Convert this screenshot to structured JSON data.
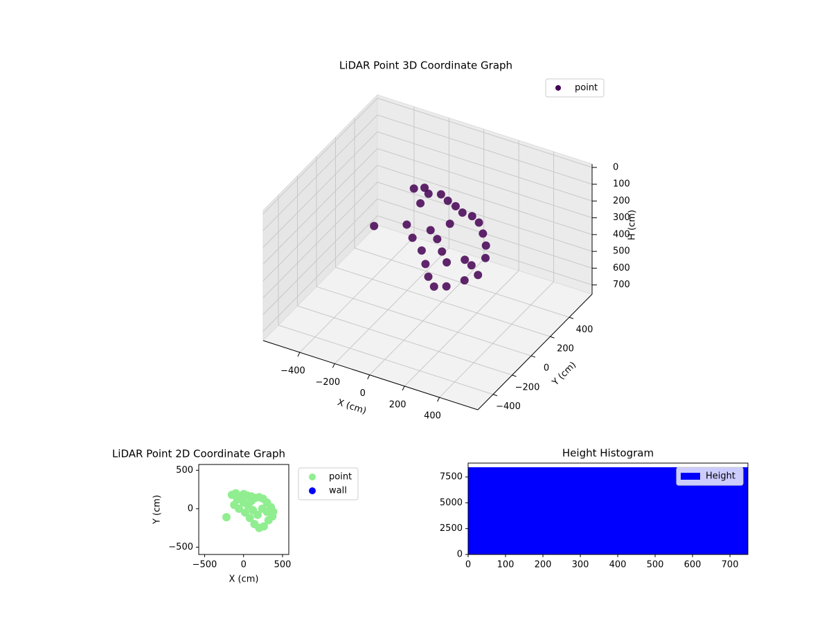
{
  "chart_data": [
    {
      "type": "scatter3d",
      "title": "LiDAR Point 3D Coordinate Graph",
      "xlabel": "X (cm)",
      "ylabel": "Y (cm)",
      "zlabel": "H (cm)",
      "xlim": [
        -610,
        620
      ],
      "ylim": [
        -560,
        640
      ],
      "zlim": [
        755,
        -20
      ],
      "xticks": [
        {
          "value": -400,
          "label": "−400"
        },
        {
          "value": -200,
          "label": "−200"
        },
        0,
        200,
        400
      ],
      "yticks": [
        {
          "value": -400,
          "label": "−400"
        },
        {
          "value": -200,
          "label": "−200"
        },
        0,
        200,
        400
      ],
      "zticks": [
        0,
        100,
        200,
        300,
        400,
        500,
        600,
        700
      ],
      "grid": true,
      "legend": "upper right",
      "series": [
        {
          "name": "point",
          "color": "#440154",
          "x": [
            -220,
            -150,
            -100,
            -50,
            0,
            50,
            100,
            150,
            200,
            250,
            300,
            350,
            380,
            -120,
            -60,
            20,
            80,
            140,
            200,
            260,
            320,
            370,
            0,
            60,
            120,
            180,
            240,
            300,
            -80,
            100
          ],
          "y": [
            -110,
            180,
            200,
            150,
            190,
            170,
            160,
            140,
            150,
            130,
            80,
            20,
            -40,
            50,
            0,
            -50,
            -120,
            -200,
            -250,
            -230,
            -150,
            -100,
            80,
            40,
            -20,
            -80,
            0,
            -40,
            120,
            100
          ],
          "z": [
            200,
            120,
            110,
            100,
            110,
            120,
            130,
            140,
            150,
            160,
            180,
            200,
            230,
            250,
            280,
            300,
            320,
            330,
            340,
            330,
            320,
            300,
            260,
            270,
            290,
            300,
            310,
            300,
            150,
            200
          ]
        }
      ]
    },
    {
      "type": "scatter",
      "title": "LiDAR Point 2D Coordinate Graph",
      "xlabel": "X (cm)",
      "ylabel": "Y (cm)",
      "xlim": [
        -575,
        580
      ],
      "ylim": [
        -595,
        575
      ],
      "xticks": [
        {
          "value": -500,
          "label": "−500"
        },
        0,
        500
      ],
      "yticks": [
        {
          "value": -500,
          "label": "−500"
        },
        0,
        500
      ],
      "legend": "outside",
      "series": [
        {
          "name": "point",
          "color": "#90ee90",
          "x": [
            -220,
            -150,
            -100,
            -50,
            0,
            50,
            100,
            150,
            200,
            250,
            300,
            350,
            380,
            -120,
            -60,
            20,
            80,
            140,
            200,
            260,
            320,
            370,
            0,
            60,
            120,
            180,
            240,
            300,
            -80,
            100
          ],
          "y": [
            -110,
            180,
            200,
            150,
            190,
            170,
            160,
            140,
            150,
            130,
            80,
            20,
            -40,
            50,
            0,
            -50,
            -120,
            -200,
            -250,
            -230,
            -150,
            -100,
            80,
            40,
            -20,
            -80,
            0,
            -40,
            120,
            100
          ]
        },
        {
          "name": "wall",
          "color": "#0000ff",
          "x": [],
          "y": []
        }
      ]
    },
    {
      "type": "histogram",
      "title": "Height Histogram",
      "xlim": [
        0,
        748
      ],
      "ylim": [
        0,
        8840
      ],
      "xticks": [
        0,
        100,
        200,
        300,
        400,
        500,
        600,
        700
      ],
      "yticks": [
        0,
        2500,
        5000,
        7500
      ],
      "legend": "upper right",
      "bins": [
        0,
        748
      ],
      "series": [
        {
          "name": "Height",
          "color": "#0000ff",
          "values": [
            8440
          ]
        }
      ]
    }
  ]
}
